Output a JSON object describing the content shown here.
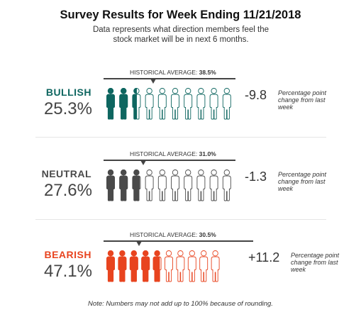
{
  "header": {
    "title": "Survey Results for Week Ending 11/21/2018",
    "subtitle": "Data represents what direction members feel the stock market will be in next 6 months."
  },
  "footer": {
    "note": "Note: Numbers may not add up to 100% because of rounding."
  },
  "chart_data": {
    "type": "pictograph",
    "icons_per_row": 10,
    "icon_unit_percent": 10,
    "hist_label_prefix": "HISTORICAL AVERAGE:",
    "change_description": "Percentage point change from last week",
    "rows": [
      {
        "category": "BULLISH",
        "percent": 25.3,
        "percent_label": "25.3%",
        "historical_average": 38.5,
        "historical_average_label": "38.5%",
        "change": -9.8,
        "change_label": "-9.8",
        "color": "#0e6660"
      },
      {
        "category": "NEUTRAL",
        "percent": 27.6,
        "percent_label": "27.6%",
        "historical_average": 31.0,
        "historical_average_label": "31.0%",
        "change": -1.3,
        "change_label": "-1.3",
        "color": "#4a4a4a"
      },
      {
        "category": "BEARISH",
        "percent": 47.1,
        "percent_label": "47.1%",
        "historical_average": 30.5,
        "historical_average_label": "30.5%",
        "change": 11.2,
        "change_label": "+11.2",
        "color": "#e8441f"
      }
    ]
  }
}
